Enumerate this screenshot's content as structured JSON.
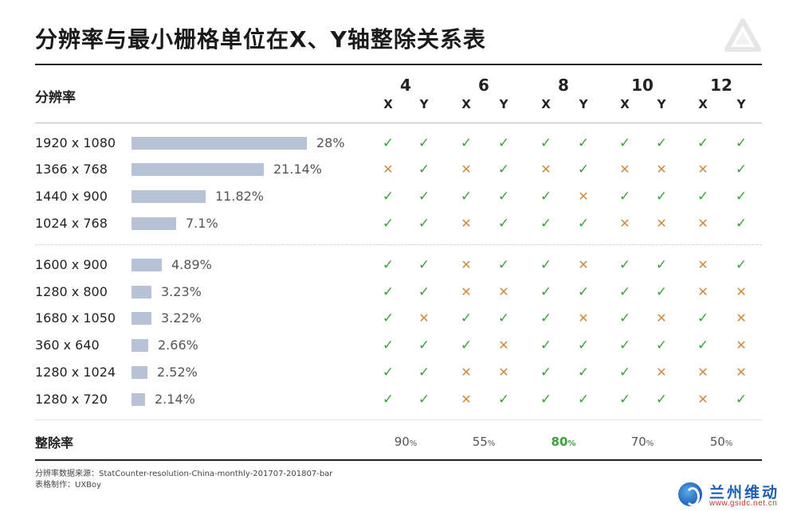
{
  "title": "分辨率与最小栅格单位在X、Y轴整除关系表",
  "header": {
    "resolution_label": "分辨率",
    "x_label": "X",
    "y_label": "Y"
  },
  "chart_data": {
    "type": "table",
    "grid_units": [
      "4",
      "6",
      "8",
      "10",
      "12"
    ],
    "bar_max": 28,
    "rows": [
      {
        "resolution": "1920 x 1080",
        "share": 28,
        "share_label": "28%",
        "marks": [
          "ok",
          "ok",
          "ok",
          "ok",
          "ok",
          "ok",
          "ok",
          "ok",
          "ok",
          "ok"
        ]
      },
      {
        "resolution": "1366 x 768",
        "share": 21.14,
        "share_label": "21.14%",
        "marks": [
          "no",
          "ok",
          "no",
          "ok",
          "no",
          "ok",
          "no",
          "no",
          "no",
          "ok"
        ]
      },
      {
        "resolution": "1440 x 900",
        "share": 11.82,
        "share_label": "11.82%",
        "marks": [
          "ok",
          "ok",
          "ok",
          "ok",
          "ok",
          "no",
          "ok",
          "ok",
          "ok",
          "ok"
        ]
      },
      {
        "resolution": "1024 x 768",
        "share": 7.1,
        "share_label": "7.1%",
        "marks": [
          "ok",
          "ok",
          "no",
          "ok",
          "ok",
          "ok",
          "no",
          "no",
          "no",
          "ok"
        ]
      },
      {
        "resolution": "1600 x 900",
        "share": 4.89,
        "share_label": "4.89%",
        "marks": [
          "ok",
          "ok",
          "no",
          "ok",
          "ok",
          "no",
          "ok",
          "ok",
          "no",
          "ok"
        ]
      },
      {
        "resolution": "1280 x 800",
        "share": 3.23,
        "share_label": "3.23%",
        "marks": [
          "ok",
          "ok",
          "no",
          "no",
          "ok",
          "ok",
          "ok",
          "ok",
          "no",
          "no"
        ]
      },
      {
        "resolution": "1680 x 1050",
        "share": 3.22,
        "share_label": "3.22%",
        "marks": [
          "ok",
          "no",
          "ok",
          "ok",
          "ok",
          "no",
          "ok",
          "no",
          "ok",
          "no"
        ]
      },
      {
        "resolution": "360 x 640",
        "share": 2.66,
        "share_label": "2.66%",
        "marks": [
          "ok",
          "ok",
          "ok",
          "no",
          "ok",
          "ok",
          "ok",
          "ok",
          "ok",
          "no"
        ]
      },
      {
        "resolution": "1280 x 1024",
        "share": 2.52,
        "share_label": "2.52%",
        "marks": [
          "ok",
          "ok",
          "no",
          "no",
          "ok",
          "ok",
          "ok",
          "no",
          "no",
          "no"
        ]
      },
      {
        "resolution": "1280 x 720",
        "share": 2.14,
        "share_label": "2.14%",
        "marks": [
          "ok",
          "ok",
          "no",
          "ok",
          "ok",
          "ok",
          "ok",
          "ok",
          "no",
          "ok"
        ]
      }
    ],
    "divisible_rate_label": "整除率",
    "divisible_rates": [
      {
        "value": "90",
        "unit": "%"
      },
      {
        "value": "55",
        "unit": "%"
      },
      {
        "value": "80",
        "unit": "%",
        "highlight": true
      },
      {
        "value": "70",
        "unit": "%"
      },
      {
        "value": "50",
        "unit": "%"
      }
    ]
  },
  "notes": {
    "source": "分辨率数据来源：StatCounter-resolution-China-monthly-201707-201807-bar",
    "author": "表格制作：UXBoy"
  },
  "watermark": {
    "name": "兰州维动",
    "url": "www.gsidc.net.cn"
  },
  "colors": {
    "ok": "#3aa23a",
    "no": "#d08a3e",
    "bar": "#b7c2d6",
    "rule": "#222222"
  }
}
